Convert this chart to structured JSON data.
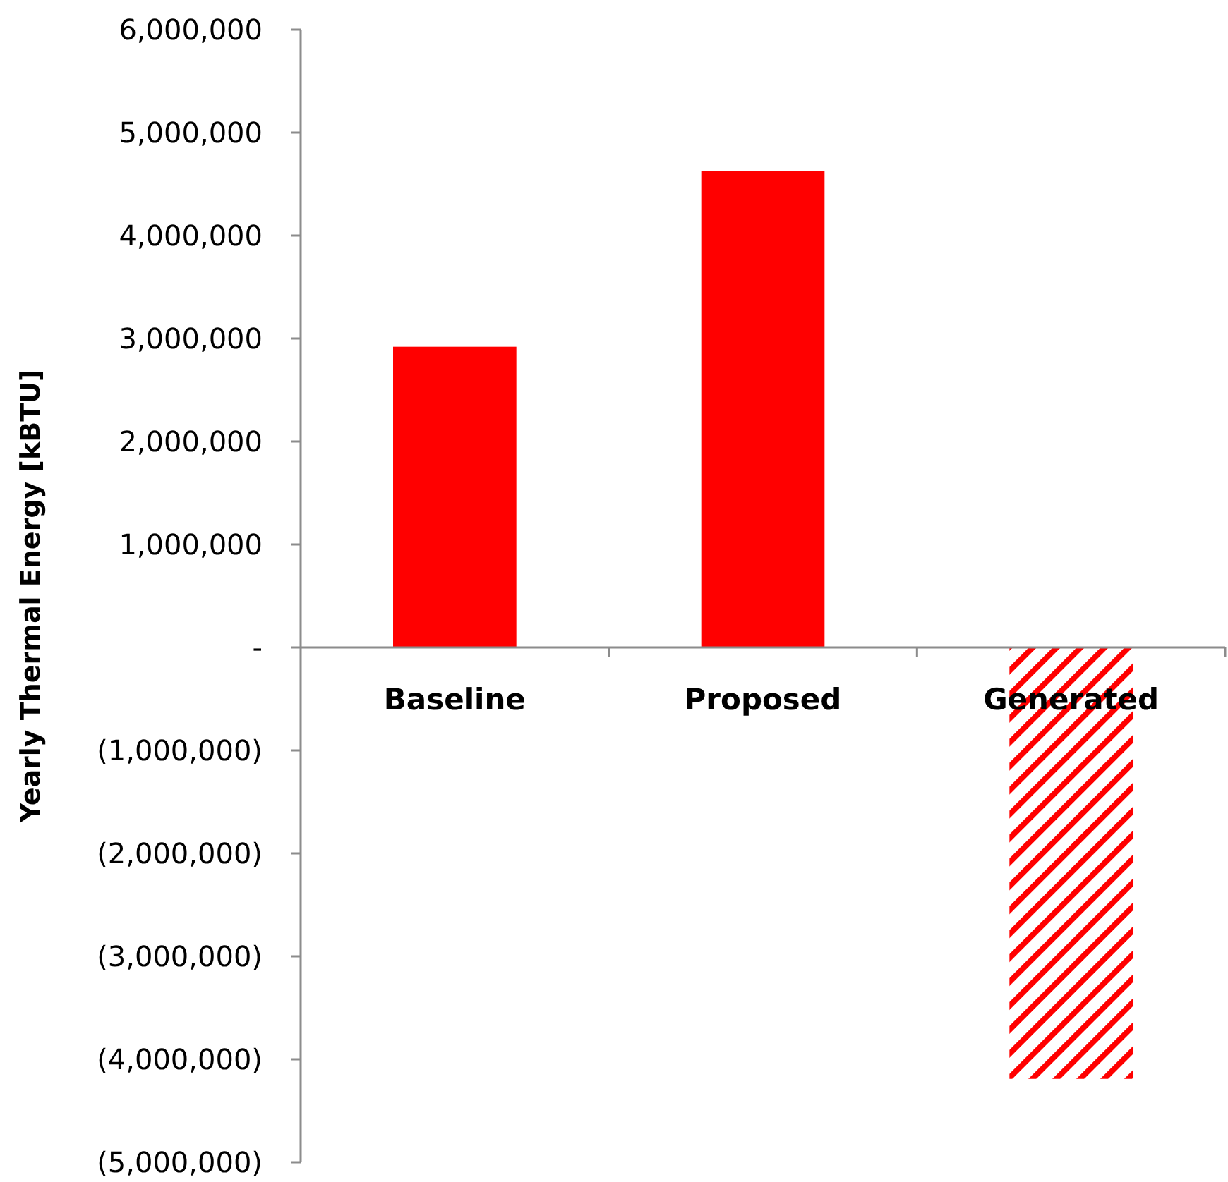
{
  "chart_data": {
    "type": "bar",
    "ylabel": "Yearly Thermal Energy [kBTU]",
    "categories": [
      "Baseline",
      "Proposed",
      "Generated"
    ],
    "values": [
      2920000,
      4630000,
      -4190000
    ],
    "colors": [
      "#ff0000",
      "#ff0000",
      "#ff0000"
    ],
    "ylim": [
      -5000000,
      6000000
    ],
    "yticks": [
      {
        "value": -5000000,
        "label": "(5,000,000)"
      },
      {
        "value": -4000000,
        "label": "(4,000,000)"
      },
      {
        "value": -3000000,
        "label": "(3,000,000)"
      },
      {
        "value": -2000000,
        "label": "(2,000,000)"
      },
      {
        "value": -1000000,
        "label": "(1,000,000)"
      },
      {
        "value": 0,
        "label": "-"
      },
      {
        "value": 1000000,
        "label": "1,000,000"
      },
      {
        "value": 2000000,
        "label": "2,000,000"
      },
      {
        "value": 3000000,
        "label": "3,000,000"
      },
      {
        "value": 4000000,
        "label": "4,000,000"
      },
      {
        "value": 5000000,
        "label": "5,000,000"
      },
      {
        "value": 6000000,
        "label": "6,000,000"
      }
    ],
    "grid": false
  }
}
